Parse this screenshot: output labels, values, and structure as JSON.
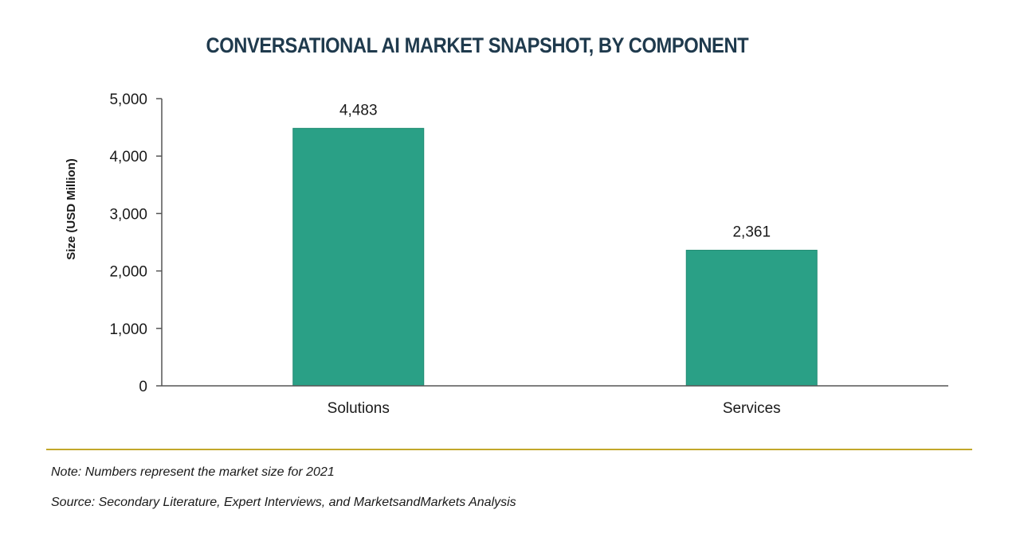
{
  "chart_data": {
    "type": "bar",
    "title": "CONVERSATIONAL AI MARKET SNAPSHOT, BY COMPONENT",
    "categories": [
      "Solutions",
      "Services"
    ],
    "values": [
      4483,
      2361
    ],
    "value_labels": [
      "4,483",
      "2,361"
    ],
    "xlabel": "",
    "ylabel": "Size (USD Million)",
    "ylim": [
      0,
      5000
    ],
    "yticks": [
      0,
      1000,
      2000,
      3000,
      4000,
      5000
    ],
    "ytick_labels": [
      "0",
      "1,000",
      "2,000",
      "3,000",
      "4,000",
      "5,000"
    ],
    "grid": false,
    "bar_color": "#2aa086"
  },
  "footer": {
    "note": "Note: Numbers represent the market size for 2021",
    "source": "Source: Secondary Literature, Expert Interviews, and MarketsandMarkets Analysis"
  },
  "colors": {
    "title": "#1f3a4d",
    "divider": "#c2a82a"
  }
}
